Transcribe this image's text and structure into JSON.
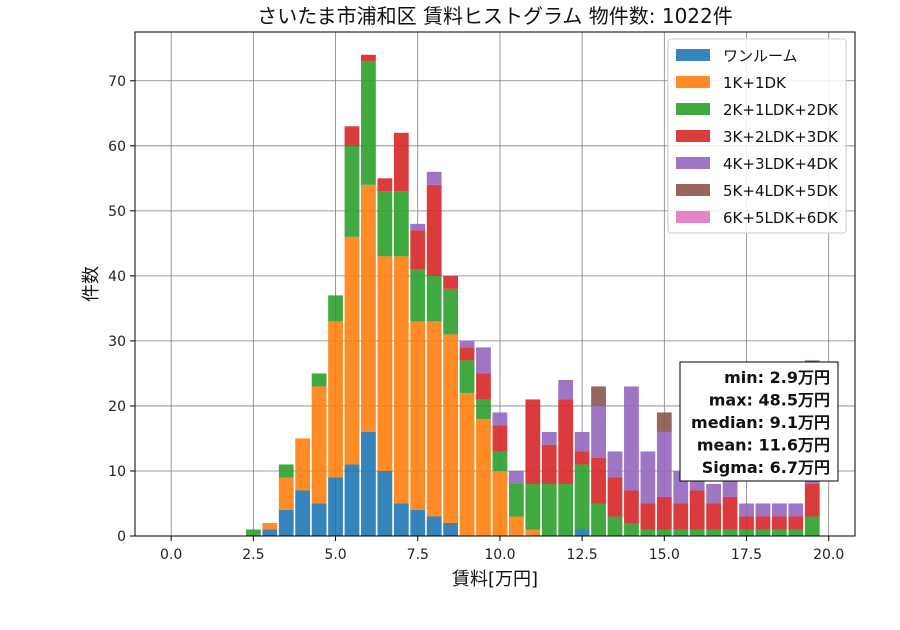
{
  "chart_data": {
    "type": "bar",
    "stacked": true,
    "title": "さいたま市浦和区 賃料ヒストグラム  物件数: 1022件",
    "xlabel": "賃料[万円]",
    "ylabel": "件数",
    "xlim": [
      -1.1,
      20.8
    ],
    "ylim": [
      0,
      77.5
    ],
    "x_ticks": [
      0.0,
      2.5,
      5.0,
      7.5,
      10.0,
      12.5,
      15.0,
      17.5,
      20.0
    ],
    "x_tick_labels": [
      "0.0",
      "2.5",
      "5.0",
      "7.5",
      "10.0",
      "12.5",
      "15.0",
      "17.5",
      "20.0"
    ],
    "y_ticks": [
      0,
      10,
      20,
      30,
      40,
      50,
      60,
      70
    ],
    "y_tick_labels": [
      "0",
      "10",
      "20",
      "30",
      "40",
      "50",
      "60",
      "70"
    ],
    "grid": true,
    "legend_position": "top-right",
    "bin_centers": [
      2.5,
      3.0,
      3.5,
      4.0,
      4.5,
      5.0,
      5.5,
      6.0,
      6.5,
      7.0,
      7.5,
      8.0,
      8.5,
      9.0,
      9.5,
      10.0,
      10.5,
      11.0,
      11.5,
      12.0,
      12.5,
      13.0,
      13.5,
      14.0,
      14.5,
      15.0,
      15.5,
      16.0,
      16.5,
      17.0,
      17.5,
      18.0,
      18.5,
      19.0,
      19.5
    ],
    "series": [
      {
        "name": "ワンルーム",
        "color": "#1f77b4",
        "values": [
          0,
          1,
          4,
          7,
          5,
          9,
          11,
          16,
          10,
          5,
          4,
          3,
          2,
          0,
          0,
          0,
          0,
          0,
          0,
          0,
          1,
          0,
          0,
          0,
          0,
          0,
          0,
          0,
          0,
          0,
          0,
          0,
          0,
          0,
          0
        ]
      },
      {
        "name": "1K+1DK",
        "color": "#ff7f0e",
        "values": [
          0,
          1,
          5,
          8,
          18,
          24,
          35,
          38,
          33,
          38,
          29,
          30,
          29,
          22,
          18,
          10,
          3,
          1,
          0,
          0,
          0,
          0,
          0,
          0,
          0,
          0,
          0,
          0,
          0,
          0,
          0,
          0,
          0,
          0,
          0
        ]
      },
      {
        "name": "2K+1LDK+2DK",
        "color": "#2ca02c",
        "values": [
          1,
          0,
          2,
          0,
          2,
          4,
          14,
          19,
          10,
          10,
          8,
          7,
          7,
          5,
          3,
          3,
          5,
          7,
          8,
          8,
          10,
          5,
          3,
          2,
          1,
          1,
          1,
          1,
          1,
          1,
          1,
          1,
          1,
          1,
          3
        ]
      },
      {
        "name": "3K+2LDK+3DK",
        "color": "#d62728",
        "values": [
          0,
          0,
          0,
          0,
          0,
          0,
          3,
          1,
          2,
          9,
          6,
          14,
          2,
          2,
          4,
          4,
          0,
          13,
          6,
          13,
          2,
          7,
          6,
          5,
          4,
          5,
          4,
          6,
          4,
          5,
          2,
          2,
          2,
          2,
          5
        ]
      },
      {
        "name": "4K+3LDK+4DK",
        "color": "#9467bd",
        "values": [
          0,
          0,
          0,
          0,
          0,
          0,
          0,
          0,
          0,
          0,
          1,
          2,
          0,
          1,
          4,
          2,
          2,
          0,
          2,
          3,
          3,
          8,
          4,
          16,
          8,
          10,
          5,
          11,
          3,
          3,
          2,
          2,
          2,
          2,
          4
        ]
      },
      {
        "name": "5K+4LDK+5DK",
        "color": "#8c564b",
        "values": [
          0,
          0,
          0,
          0,
          0,
          0,
          0,
          0,
          0,
          0,
          0,
          0,
          0,
          0,
          0,
          0,
          0,
          0,
          0,
          0,
          0,
          3,
          0,
          0,
          0,
          3,
          0,
          0,
          0,
          0,
          0,
          0,
          0,
          0,
          15
        ]
      },
      {
        "name": "6K+5LDK+6DK",
        "color": "#e377c2",
        "values": [
          0,
          0,
          0,
          0,
          0,
          0,
          0,
          0,
          0,
          0,
          0,
          0,
          0,
          0,
          0,
          0,
          0,
          0,
          0,
          0,
          0,
          0,
          0,
          0,
          0,
          0,
          0,
          0,
          0,
          0,
          0,
          0,
          0,
          0,
          0
        ]
      }
    ],
    "stats": [
      "min: 2.9万円",
      "max: 48.5万円",
      "median: 9.1万円",
      "mean: 11.6万円",
      "Sigma: 6.7万円"
    ]
  }
}
